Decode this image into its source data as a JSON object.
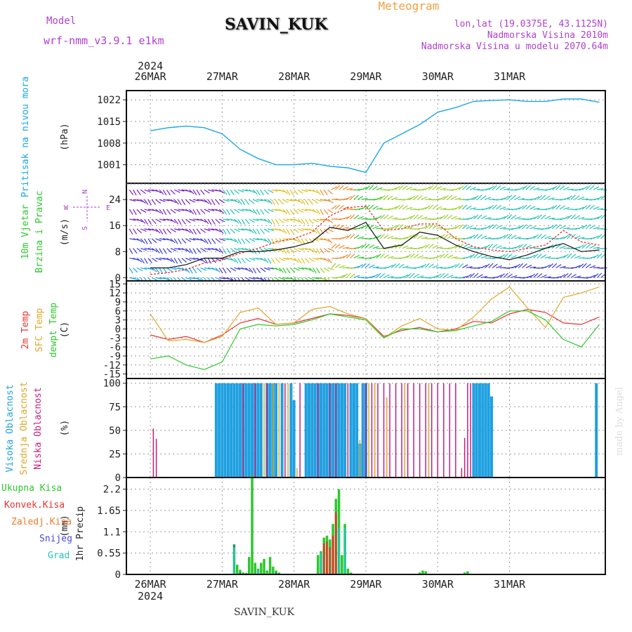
{
  "header": {
    "model_label": "Model",
    "model_value": "wrf-nmm_v3.9.1 e1km",
    "station": "SAVIN_KUK",
    "product": "Meteogram",
    "lonlat": "lon,lat (19.0375E, 43.1125N)",
    "elevation": "Nadmorska Visina 2010m",
    "model_elevation": "Nadmorska Visina u modelu 2070.64m",
    "footer_station": "SAVIN_KUK",
    "credit": "made by Angel"
  },
  "colors": {
    "pressure": "#1aa7e6",
    "temp2m": "#e8322e",
    "sfc": "#e0a92a",
    "dewpt": "#2cc82c",
    "high_cloud": "#1fa0e0",
    "mid_cloud": "#d9a82a",
    "low_cloud": "#c81e7e",
    "total_precip": "#2cc82c",
    "conv_precip": "#e8322e",
    "frozen_precip": "#f07a2a",
    "snow": "#4a4ad8",
    "hail": "#22c4b4",
    "label_magenta": "#b040d0",
    "label_orange": "#f0a040"
  },
  "chart_data": [
    {
      "type": "line",
      "panel": "pressure",
      "ylabel": "Pritisak na nivou mora",
      "unit": "(hPa)",
      "ylim": [
        995,
        1025
      ],
      "yticks": [
        1001,
        1008,
        1015,
        1022
      ],
      "x_dates": [
        "26MAR",
        "27MAR",
        "28MAR",
        "29MAR",
        "30MAR",
        "31MAR"
      ],
      "year": "2024",
      "x_hours": [
        0,
        6,
        12,
        18,
        24,
        30,
        36,
        42,
        48,
        54,
        60,
        66,
        72,
        78,
        84,
        90,
        96,
        102,
        108,
        114,
        120,
        126,
        132,
        138,
        144,
        150
      ],
      "values": [
        1012,
        1013,
        1013.5,
        1013,
        1011,
        1006,
        1003,
        1001,
        1001,
        1001.5,
        1000.5,
        1000,
        998.5,
        1008,
        1011,
        1014,
        1018,
        1019.5,
        1021.5,
        1021.8,
        1022,
        1021.5,
        1021.5,
        1022.3,
        1022.3,
        1021.2
      ],
      "grid": true
    },
    {
      "type": "line",
      "panel": "wind",
      "ylabel": [
        "10m Vjetar",
        "Brzina i Pravac"
      ],
      "unit": "(m/s)",
      "compass": [
        "N",
        "W",
        "E",
        "S"
      ],
      "ylim": [
        -1,
        29
      ],
      "yticks": [
        0,
        8,
        16,
        24
      ],
      "x_hours": [
        0,
        6,
        12,
        18,
        24,
        30,
        36,
        42,
        48,
        54,
        60,
        66,
        72,
        78,
        84,
        90,
        96,
        102,
        108,
        114,
        120,
        126,
        132,
        138,
        144,
        150
      ],
      "series": [
        {
          "values": [
            3,
            3,
            4,
            6,
            6,
            8,
            8,
            8.5,
            9.5,
            11,
            15.5,
            14.5,
            17,
            9,
            10,
            14,
            13,
            10,
            8,
            6.5,
            5.5,
            7,
            9,
            10.5,
            8,
            8.5
          ]
        },
        {
          "values": [
            1,
            1.5,
            2.5,
            4.5,
            5.5,
            7.5,
            9,
            11,
            12,
            14,
            19,
            21.5,
            22,
            14.5,
            15,
            16.5,
            16.5,
            12,
            9.5,
            8.5,
            8,
            9,
            10,
            14.5,
            11,
            10
          ]
        }
      ],
      "grid": true
    },
    {
      "type": "line",
      "panel": "temperature",
      "ylabel": [
        "2m Temp",
        "SFC Temp",
        "dewpt Temp"
      ],
      "unit": "(C)",
      "ylim": [
        -16.5,
        16
      ],
      "yticks": [
        -15,
        -12,
        -9,
        -6,
        -3,
        0,
        3,
        6,
        9,
        12,
        15
      ],
      "x_hours": [
        0,
        6,
        12,
        18,
        24,
        30,
        36,
        42,
        48,
        54,
        60,
        66,
        72,
        78,
        84,
        90,
        96,
        102,
        108,
        114,
        120,
        126,
        132,
        138,
        144,
        150
      ],
      "series": [
        {
          "name": "2m Temp",
          "values": [
            -2,
            -3.5,
            -2.5,
            -4.5,
            -2,
            2,
            3.5,
            1.5,
            2,
            3.5,
            5,
            4.5,
            3.5,
            -2.5,
            -0.5,
            0.5,
            -1,
            0,
            2.5,
            2,
            5,
            6.5,
            5.5,
            2,
            1.5,
            4
          ]
        },
        {
          "name": "SFC Temp",
          "values": [
            5,
            -4,
            -3.5,
            -4.5,
            -2.5,
            5.5,
            7,
            1.5,
            2,
            6.5,
            7.5,
            5,
            3.5,
            -3,
            1,
            3.5,
            0,
            -0.5,
            4,
            10,
            14,
            7,
            0.5,
            10.5,
            12,
            14
          ]
        },
        {
          "name": "dewpt Temp",
          "values": [
            -10,
            -9,
            -12,
            -13.5,
            -11,
            0,
            1.5,
            1,
            1.5,
            3,
            5,
            4,
            3,
            -3,
            0,
            0,
            -1,
            -0.5,
            1,
            2.5,
            6,
            6,
            3,
            -3.5,
            -6,
            1.5
          ]
        }
      ],
      "grid": true
    },
    {
      "type": "bar",
      "panel": "cloud",
      "ylabel": [
        "Visoka Oblacnost",
        "Srednja Oblacnost",
        "Niska Oblacnost"
      ],
      "unit": "(%)",
      "ylim": [
        0,
        105
      ],
      "yticks": [
        0,
        25,
        50,
        75,
        100
      ],
      "series": [
        {
          "name": "Visoka Oblacnost",
          "x_hours": [
            22,
            23,
            24,
            25,
            26,
            27,
            28,
            29,
            30,
            31,
            32,
            33,
            34,
            35,
            36,
            37,
            39,
            40,
            41,
            42,
            44,
            47,
            48,
            52,
            53,
            54,
            55,
            56,
            57,
            58,
            59,
            60,
            61,
            62,
            63,
            64,
            65,
            67,
            68,
            69,
            70,
            71,
            72,
            108,
            109,
            110,
            111,
            112,
            113,
            114,
            149
          ],
          "values": [
            100,
            100,
            100,
            100,
            100,
            100,
            100,
            100,
            100,
            100,
            100,
            100,
            100,
            100,
            100,
            100,
            100,
            100,
            100,
            100,
            100,
            100,
            82,
            100,
            100,
            100,
            100,
            100,
            100,
            100,
            100,
            100,
            100,
            100,
            100,
            100,
            100,
            100,
            100,
            100,
            36,
            100,
            100,
            100,
            100,
            100,
            100,
            100,
            100,
            86,
            100
          ]
        },
        {
          "name": "Srednja Oblacnost",
          "x_hours": [
            38,
            41,
            43,
            46,
            49,
            70,
            73,
            75,
            79,
            85,
            93,
            96
          ],
          "values": [
            100,
            100,
            100,
            100,
            10,
            40,
            100,
            100,
            85,
            100,
            100,
            60
          ]
        },
        {
          "name": "Niska Oblacnost",
          "x_hours": [
            1,
            2,
            31,
            35,
            39,
            45,
            50,
            56,
            60,
            62,
            66,
            72,
            74,
            76,
            78,
            80,
            82,
            84,
            86,
            88,
            90,
            92,
            94,
            96,
            98,
            100,
            102,
            104,
            105,
            106,
            107
          ],
          "values": [
            52,
            41,
            100,
            100,
            100,
            100,
            100,
            100,
            100,
            100,
            100,
            100,
            100,
            100,
            100,
            100,
            100,
            100,
            100,
            100,
            100,
            100,
            100,
            100,
            100,
            100,
            100,
            10,
            42,
            100,
            100
          ]
        }
      ],
      "grid": true
    },
    {
      "type": "bar",
      "panel": "precip",
      "ylabel": "1hr Precip",
      "unit": "(mm)",
      "legend": [
        "Ukupna Kisa",
        "Konvek.Kisa",
        "Zaledj.Kisa",
        "Snijeg",
        "Grad"
      ],
      "ylim": [
        0,
        2.5
      ],
      "yticks": [
        0,
        0.55,
        1.1,
        1.65,
        2.2
      ],
      "series": [
        {
          "name": "Ukupna Kisa",
          "x_hours": [
            28,
            29,
            30,
            31,
            32,
            33,
            34,
            35,
            36,
            37,
            38,
            39,
            40,
            41,
            42,
            43,
            56,
            57,
            58,
            59,
            60,
            61,
            62,
            63,
            64,
            65,
            66,
            67,
            90,
            91,
            92,
            105,
            106
          ],
          "values": [
            0.78,
            0.25,
            0.12,
            0.05,
            0.04,
            0.45,
            2.55,
            0.3,
            0.15,
            0.3,
            0.4,
            0.1,
            0.45,
            0.2,
            0.1,
            0.05,
            0.5,
            0.6,
            0.95,
            1.0,
            0.9,
            1.3,
            1.95,
            2.2,
            0.5,
            1.3,
            0.15,
            0.05,
            0.05,
            0.1,
            0.08,
            0.05,
            0.08
          ]
        },
        {
          "name": "Konvek.Kisa",
          "x_hours": [
            58,
            59,
            60,
            61,
            62
          ],
          "values": [
            0.8,
            0.85,
            0.7,
            1.0,
            1.6
          ]
        },
        {
          "name": "Snijeg",
          "x_hours": [
            28,
            30,
            42
          ],
          "values": [
            0.75,
            0.05,
            0.05
          ]
        },
        {
          "name": "Grad",
          "x_hours": [
            28,
            36,
            57,
            63,
            65
          ],
          "values": [
            0.7,
            0.12,
            0.55,
            1.2,
            1.2
          ]
        }
      ],
      "grid": true
    }
  ]
}
